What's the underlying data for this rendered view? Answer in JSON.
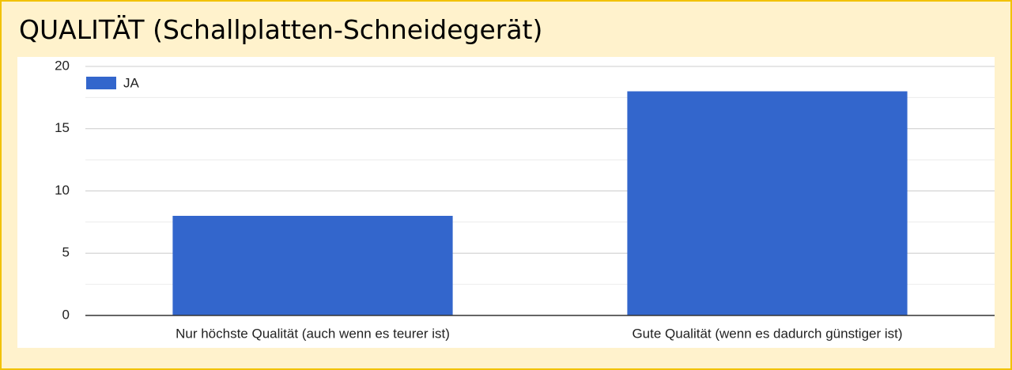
{
  "chart_data": {
    "type": "bar",
    "title": "QUALITÄT (Schallplatten-Schneidegerät)",
    "categories": [
      "Nur höchste Qualität (auch wenn es teurer ist)",
      "Gute Qualität (wenn es dadurch günstiger ist)"
    ],
    "series": [
      {
        "name": "JA",
        "color": "#3366cc",
        "values": [
          8,
          18
        ]
      }
    ],
    "ylim": [
      0,
      20
    ],
    "yticks": [
      0,
      5,
      10,
      15,
      20
    ],
    "grid": true,
    "legend": "top-left"
  }
}
